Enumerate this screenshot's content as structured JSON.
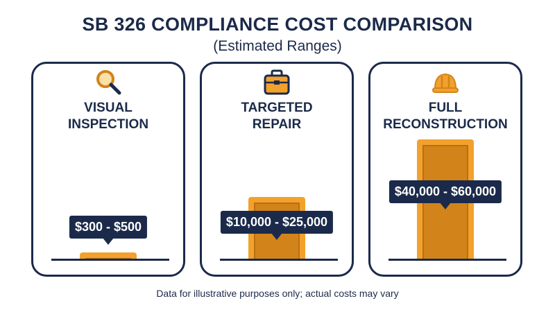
{
  "chart_data": {
    "type": "bar",
    "title": "SB 326 COMPLIANCE COST COMPARISON",
    "subtitle": "(Estimated Ranges)",
    "categories": [
      "VISUAL\nINSPECTION",
      "TARGETED\nREPAIR",
      "FULL\nRECONSTRUCTION"
    ],
    "series": [
      {
        "values": [
          [
            300,
            500
          ],
          [
            10000,
            25000
          ],
          [
            40000,
            60000
          ]
        ]
      }
    ],
    "value_labels": [
      "$300 - $500",
      "$10,000 - $25,000",
      "$40,000 - $60,000"
    ],
    "icons": [
      "magnifying-glass-icon",
      "toolbox-icon",
      "hard-hat-icon"
    ],
    "bar_fraction_of_max": [
      0.05,
      0.52,
      1.0
    ],
    "ylim": [
      0,
      60000
    ],
    "grid": false,
    "legend": "none",
    "colors": {
      "bar": "#f2a12c",
      "bar_inner": "#d2841a",
      "ink": "#1b2a4a",
      "callout_text": "#ffffff"
    }
  },
  "footnote": "Data for illustrative purposes only; actual costs may vary"
}
